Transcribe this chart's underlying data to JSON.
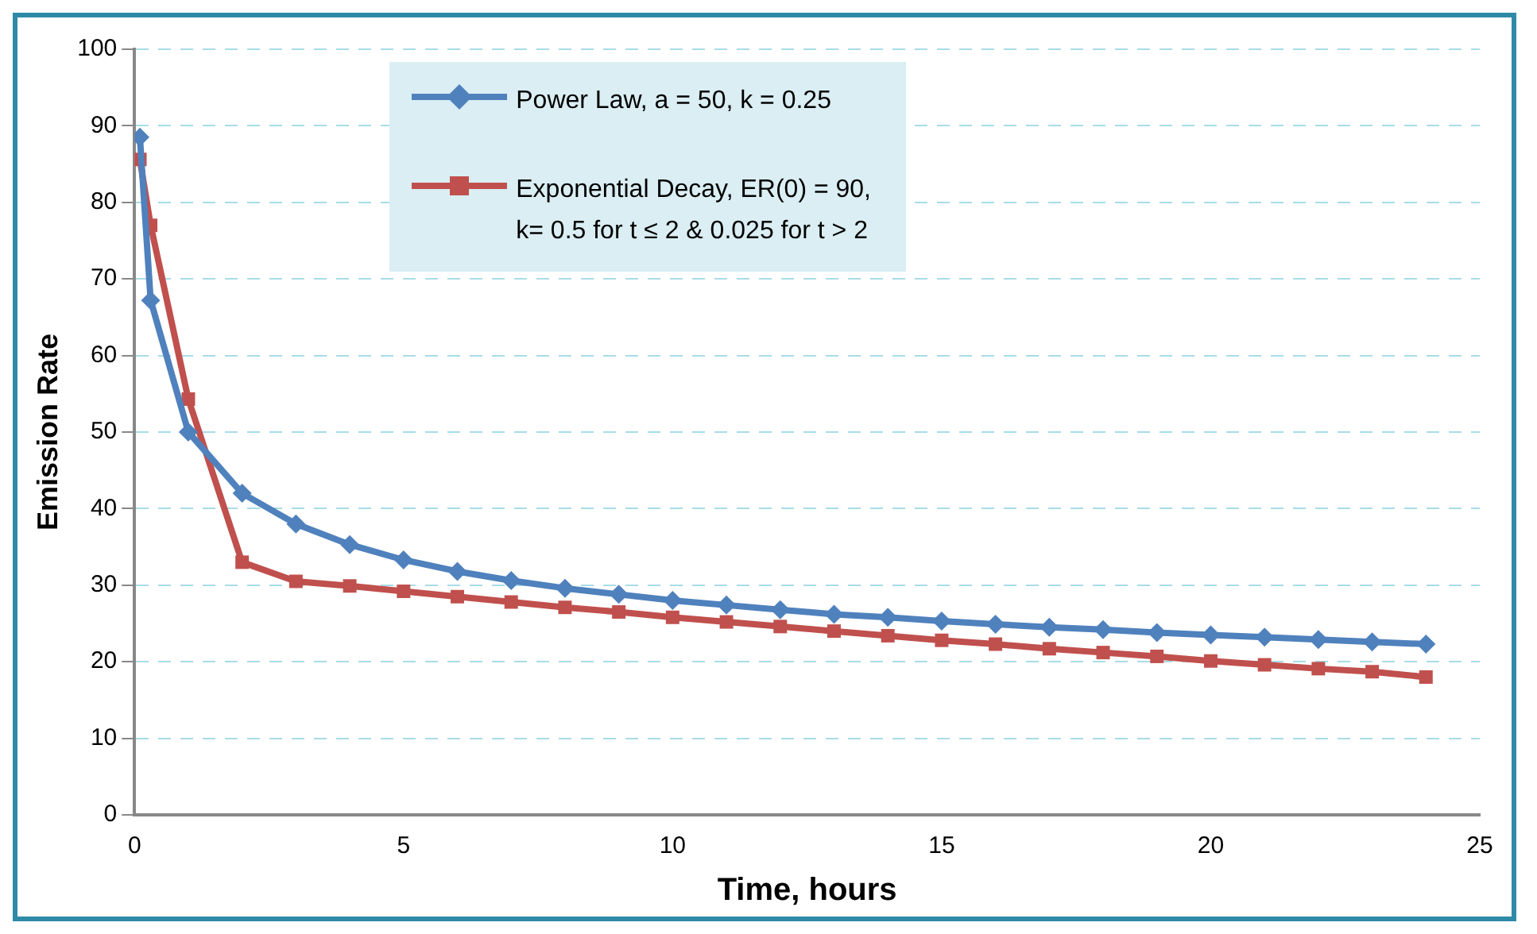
{
  "chart_data": {
    "type": "line",
    "xlabel": "Time, hours",
    "ylabel": "Emission Rate",
    "xlim": [
      0,
      25
    ],
    "xticks": [
      0,
      5,
      10,
      15,
      20,
      25
    ],
    "ylim": [
      0,
      100
    ],
    "yticks": [
      0,
      10,
      20,
      30,
      40,
      50,
      60,
      70,
      80,
      90,
      100
    ],
    "grid": "y",
    "legend": "top",
    "line_style": "solid",
    "series": [
      {
        "name": "Power Law, a = 50, k = 0.25",
        "color": "#4f81bd",
        "marker": "diamond",
        "x": [
          0.1,
          0.3,
          1,
          2,
          3,
          4,
          5,
          6,
          7,
          8,
          9,
          10,
          11,
          12,
          13,
          14,
          15,
          16,
          17,
          18,
          19,
          20,
          21,
          22,
          23,
          24
        ],
        "values": [
          88.5,
          67.2,
          50,
          42,
          38,
          35.3,
          33.3,
          31.8,
          30.6,
          29.6,
          28.8,
          28,
          27.4,
          26.8,
          26.2,
          25.8,
          25.3,
          24.9,
          24.5,
          24.2,
          23.8,
          23.5,
          23.2,
          22.9,
          22.6,
          22.3
        ]
      },
      {
        "name": "Exponential Decay, ER(0) = 90,\nk= 0.5 for t ≤ 2 & 0.025 for t > 2",
        "color": "#c0504d",
        "marker": "square",
        "x": [
          0.1,
          0.3,
          1,
          2,
          3,
          4,
          5,
          6,
          7,
          8,
          9,
          10,
          11,
          12,
          13,
          14,
          15,
          16,
          17,
          18,
          19,
          20,
          21,
          22,
          23,
          24
        ],
        "values": [
          85.6,
          77,
          54.3,
          33,
          30.5,
          29.9,
          29.2,
          28.5,
          27.8,
          27.1,
          26.5,
          25.8,
          25.2,
          24.6,
          24,
          23.4,
          22.8,
          22.3,
          21.7,
          21.2,
          20.7,
          20.1,
          19.6,
          19.1,
          18.7,
          18
        ]
      }
    ]
  }
}
